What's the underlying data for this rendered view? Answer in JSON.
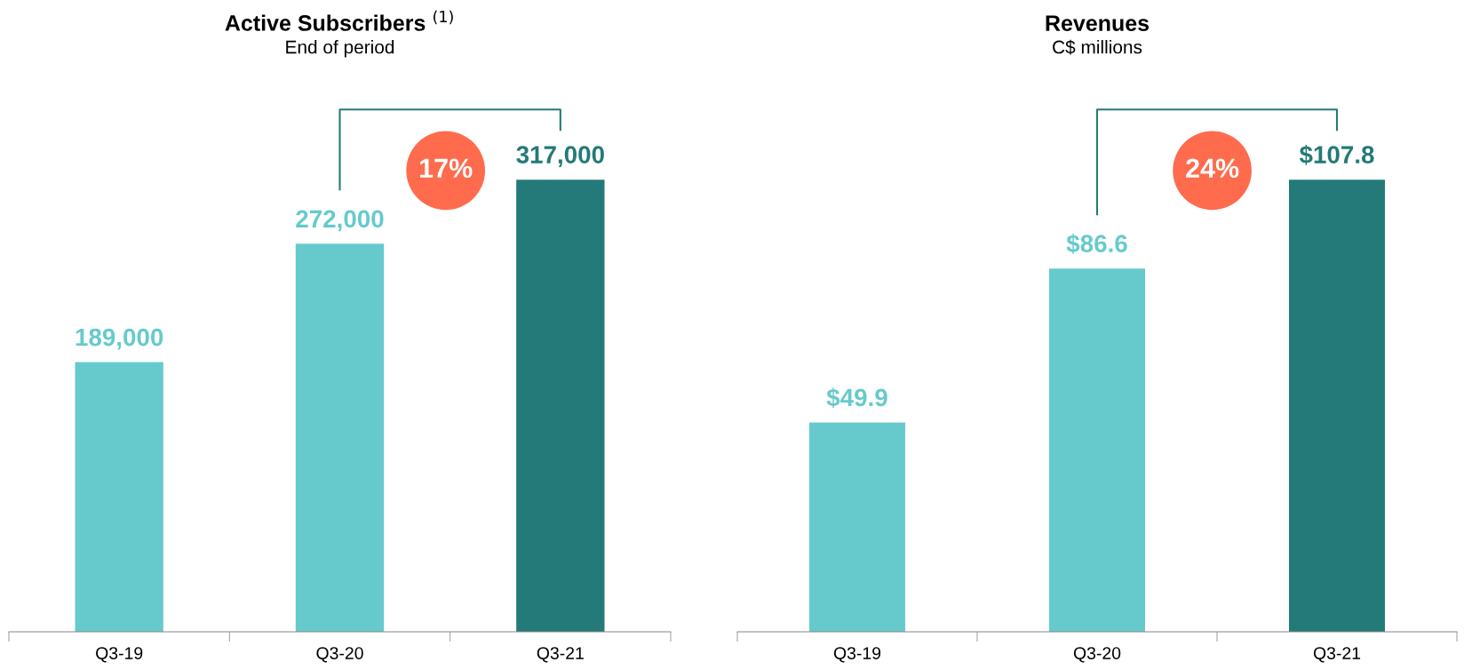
{
  "chart_data": [
    {
      "type": "bar",
      "title": "Active Subscribers $^{(1)}$",
      "subtitle": "End of period",
      "categories": [
        "Q3-19",
        "Q3-20",
        "Q3-21"
      ],
      "values": [
        189000,
        272000,
        317000
      ],
      "value_labels": [
        "189,000",
        "272,000",
        "317,000"
      ],
      "colors": [
        "#66cacc",
        "#66cacc",
        "#247a78"
      ],
      "annotations": [
        "17%"
      ]
    },
    {
      "type": "bar",
      "title": "Revenues",
      "subtitle": "C$ millions",
      "categories": [
        "Q3-19",
        "Q3-20",
        "Q3-21"
      ],
      "values": [
        49.9,
        86.6,
        107.8
      ],
      "value_labels": [
        "$49.9",
        "$86.6",
        "$107.8"
      ],
      "colors": [
        "#66cacc",
        "#66cacc",
        "#247a78"
      ],
      "annotations": [
        "24%"
      ]
    }
  ]
}
